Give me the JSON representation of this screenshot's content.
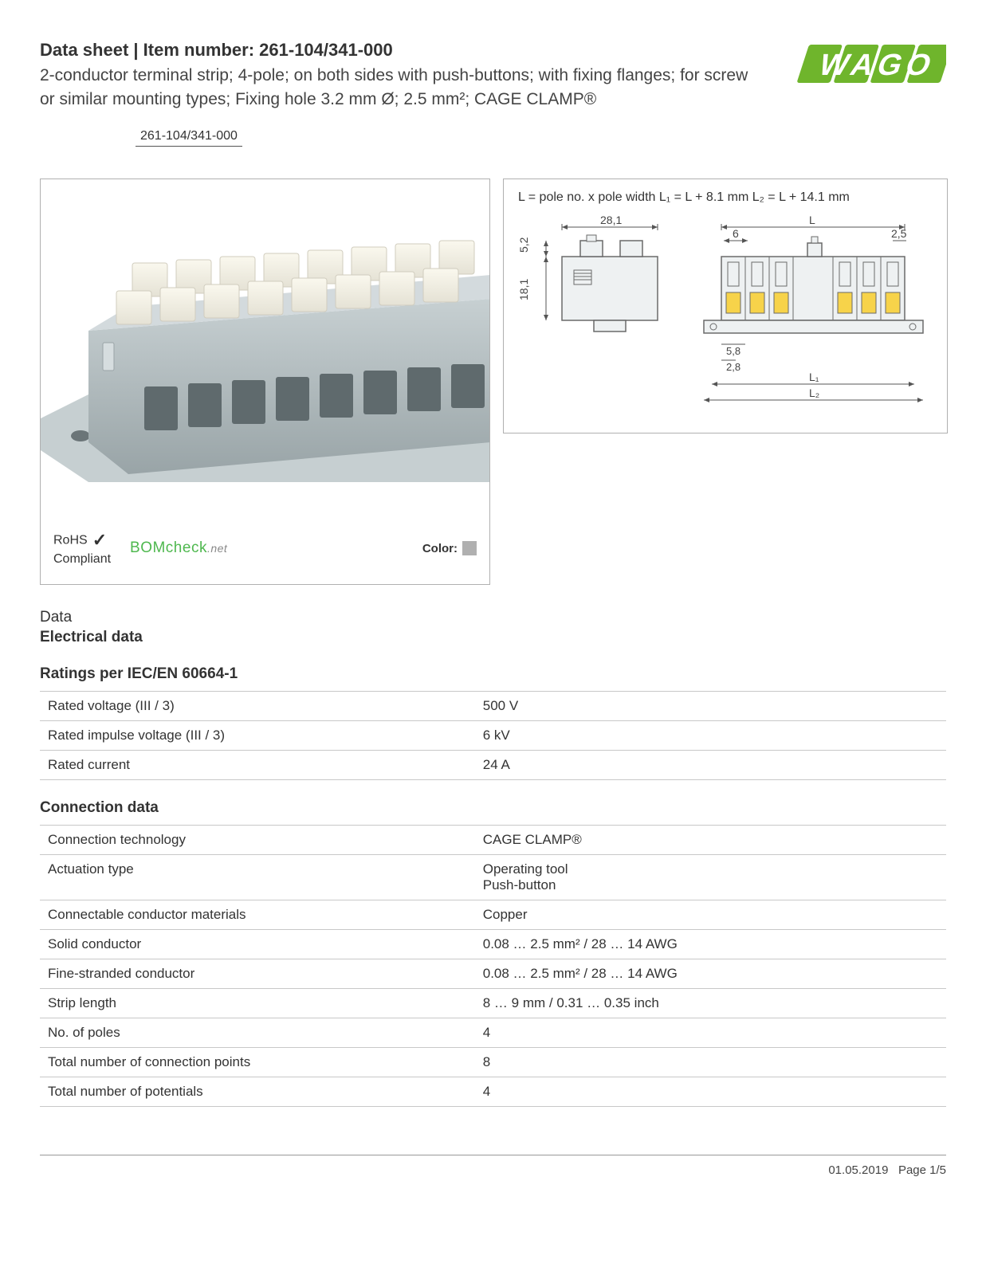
{
  "header": {
    "title_prefix": "Data sheet",
    "title_sep": " | ",
    "title_label": "Item number:",
    "item_number": "261-104/341-000",
    "description": "2-conductor terminal strip; 4-pole; on both sides with push-buttons; with fixing flanges; for screw or similar mounting types; Fixing hole 3.2 mm Ø; 2.5 mm²; CAGE CLAMP®"
  },
  "logo": {
    "text": "WAGO",
    "primary_color": "#6fb52c",
    "accent_color": "#9ed455",
    "background": "#ffffff"
  },
  "item_number_box": "261-104/341-000",
  "compliance": {
    "rohs_line1": "RoHS",
    "rohs_line2": "Compliant",
    "bomcheck": "BOMcheck",
    "bomcheck_suffix": ".net",
    "color_label": "Color:",
    "color_swatch": "#b0b0b0"
  },
  "diagram": {
    "formula": "L = pole no. x pole width   L₁ = L + 8.1 mm   L₂ = L + 14.1 mm",
    "dims": {
      "w_top": "28,1",
      "h_tab": "5,2",
      "h_body": "18,1",
      "pitch": "6",
      "wall": "2,5",
      "foot_outer": "5,8",
      "foot_inner": "2,8",
      "L": "L",
      "L1": "L₁",
      "L2": "L₂"
    },
    "colors": {
      "outline": "#6a6a6a",
      "fill_body": "#e9edef",
      "fill_yellow": "#f7d34a",
      "dim_line": "#555555"
    }
  },
  "product_render": {
    "body_color": "#aeb9bc",
    "body_shadow": "#8f9a9d",
    "button_color": "#f2f0e5",
    "slot_color": "#5f6a6d",
    "flange_color": "#c2cbcd"
  },
  "data_section_label": "Data",
  "electrical_heading": "Electrical data",
  "ratings_heading": "Ratings per IEC/EN 60664-1",
  "ratings_table": [
    {
      "k": "Rated voltage (III / 3)",
      "v": "500 V"
    },
    {
      "k": "Rated impulse voltage (III / 3)",
      "v": "6 kV"
    },
    {
      "k": "Rated current",
      "v": "24 A"
    }
  ],
  "connection_heading": "Connection data",
  "connection_table": [
    {
      "k": "Connection technology",
      "v": "CAGE CLAMP®"
    },
    {
      "k": "Actuation type",
      "v": "Operating tool\nPush-button"
    },
    {
      "k": "Connectable conductor materials",
      "v": "Copper"
    },
    {
      "k": "Solid conductor",
      "v": "0.08 … 2.5 mm² / 28 … 14 AWG"
    },
    {
      "k": "Fine-stranded conductor",
      "v": "0.08 … 2.5 mm² / 28 … 14 AWG"
    },
    {
      "k": "Strip length",
      "v": "8 … 9 mm / 0.31 … 0.35 inch"
    },
    {
      "k": "No. of poles",
      "v": "4"
    },
    {
      "k": "Total number of connection points",
      "v": "8"
    },
    {
      "k": "Total number of potentials",
      "v": "4"
    }
  ],
  "footer": {
    "date": "01.05.2019",
    "page": "Page 1/5"
  }
}
